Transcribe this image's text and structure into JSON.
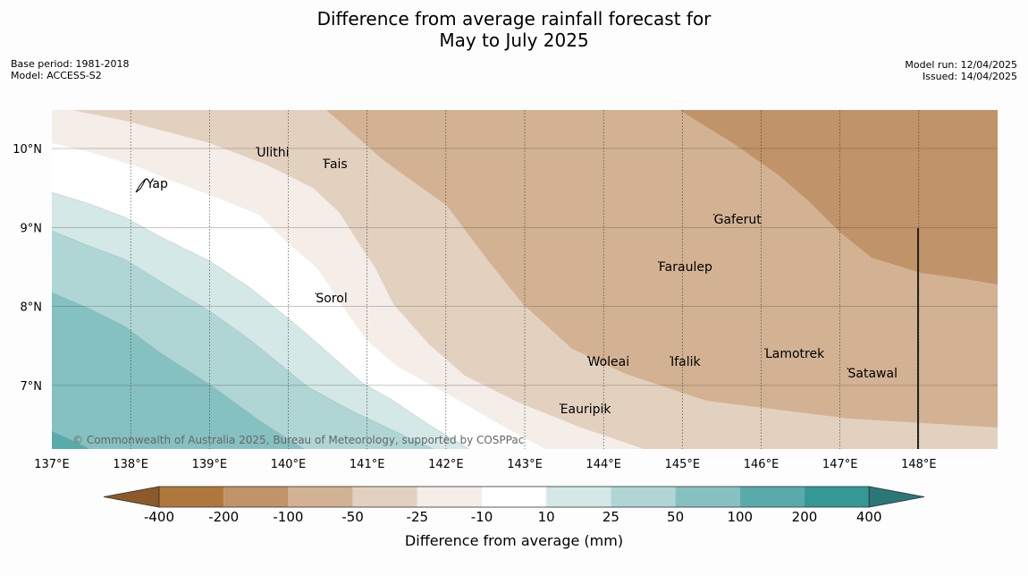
{
  "header": {
    "title_line1": "Difference from average rainfall forecast for",
    "title_line2": "May to July 2025",
    "base_period": "Base period: 1981-2018",
    "model": "Model: ACCESS-S2",
    "model_run": "Model run: 12/04/2025",
    "issued": "Issued: 14/04/2025"
  },
  "map": {
    "lon_ticks": [
      "137°E",
      "138°E",
      "139°E",
      "140°E",
      "141°E",
      "142°E",
      "143°E",
      "144°E",
      "145°E",
      "146°E",
      "147°E",
      "148°E"
    ],
    "lat_ticks": [
      "10°N",
      "9°N",
      "8°N",
      "7°N"
    ],
    "copyright": "© Commonwealth of Australia 2025, Bureau of Meteorology, supported by COSPPac",
    "places": [
      {
        "name": "Yap",
        "lon": 138.2,
        "lat": 9.5
      },
      {
        "name": "Ulithi",
        "lon": 139.6,
        "lat": 9.9
      },
      {
        "name": "Fais",
        "lon": 140.45,
        "lat": 9.75
      },
      {
        "name": "Gaferut",
        "lon": 145.4,
        "lat": 9.05
      },
      {
        "name": "Faraulep",
        "lon": 144.7,
        "lat": 8.45
      },
      {
        "name": "Sorol",
        "lon": 140.35,
        "lat": 8.05
      },
      {
        "name": "Lamotrek",
        "lon": 146.05,
        "lat": 7.35
      },
      {
        "name": "Woleai",
        "lon": 143.8,
        "lat": 7.25
      },
      {
        "name": "Ifalik",
        "lon": 144.85,
        "lat": 7.25
      },
      {
        "name": "Satawal",
        "lon": 147.1,
        "lat": 7.1
      },
      {
        "name": "Eauripik",
        "lon": 143.45,
        "lat": 6.65
      }
    ]
  },
  "colorbar": {
    "label": "Difference from average (mm)",
    "tick_labels": [
      "-400",
      "-200",
      "-100",
      "-50",
      "-25",
      "-10",
      "10",
      "25",
      "50",
      "100",
      "200",
      "400"
    ],
    "colors": {
      "lt_-400": "#8b5a2b",
      "-400_-200": "#b0773d",
      "-200_-100": "#c09368",
      "-100_-50": "#d2b292",
      "-50_-25": "#e3d1c0",
      "-25_-10": "#f4ede8",
      "-10_10": "#ffffff",
      "10_25": "#d3e8e7",
      "25_50": "#afd6d5",
      "50_100": "#85c1c0",
      "100_200": "#58abaa",
      "200_400": "#349895",
      "gt_400": "#2a7777"
    }
  }
}
